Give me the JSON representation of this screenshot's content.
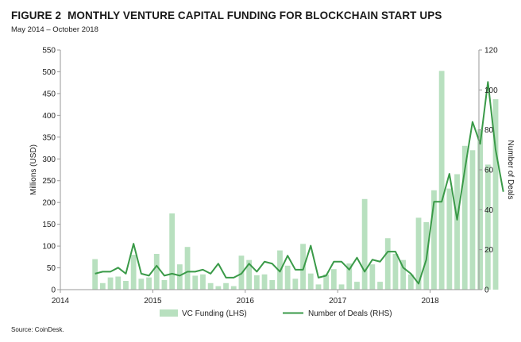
{
  "header": {
    "figure_label": "FIGURE 2",
    "title": "MONTHLY VENTURE CAPITAL FUNDING FOR BLOCKCHAIN START UPS",
    "subtitle": "May 2014 – October 2018"
  },
  "footer": {
    "source": "Source: CoinDesk."
  },
  "colors": {
    "bars": "#b8e0bf",
    "line": "#3a9a48",
    "axis": "#9a9a9a"
  },
  "chart_data": {
    "type": "bar",
    "title": "MONTHLY VENTURE CAPITAL FUNDING FOR BLOCKCHAIN START UPS",
    "subtitle": "May 2014 – October 2018",
    "ylabel": "Millions (USD)",
    "y2label": "Number of Deals",
    "ylim": [
      0,
      550
    ],
    "y2lim": [
      0,
      120
    ],
    "yticks": [
      0,
      50,
      100,
      150,
      200,
      250,
      300,
      350,
      400,
      450,
      500,
      550
    ],
    "y2ticks": [
      0,
      20,
      40,
      60,
      80,
      100,
      120
    ],
    "xtick_labels": [
      "2014",
      "2015",
      "2016",
      "2017",
      "2018"
    ],
    "legend_position": "bottom",
    "grid": false,
    "categories": [
      "May-14",
      "Jun-14",
      "Jul-14",
      "Aug-14",
      "Sep-14",
      "Oct-14",
      "Nov-14",
      "Dec-14",
      "Jan-15",
      "Feb-15",
      "Mar-15",
      "Apr-15",
      "May-15",
      "Jun-15",
      "Jul-15",
      "Aug-15",
      "Sep-15",
      "Oct-15",
      "Nov-15",
      "Dec-15",
      "Jan-16",
      "Feb-16",
      "Mar-16",
      "Apr-16",
      "May-16",
      "Jun-16",
      "Jul-16",
      "Aug-16",
      "Sep-16",
      "Oct-16",
      "Nov-16",
      "Dec-16",
      "Jan-17",
      "Feb-17",
      "Mar-17",
      "Apr-17",
      "May-17",
      "Jun-17",
      "Jul-17",
      "Aug-17",
      "Sep-17",
      "Oct-17",
      "Nov-17",
      "Dec-17",
      "Jan-18",
      "Feb-18",
      "Mar-18",
      "Apr-18",
      "May-18",
      "Jun-18",
      "Jul-18",
      "Aug-18",
      "Sep-18",
      "Oct-18"
    ],
    "series": [
      {
        "name": "VC Funding (LHS)",
        "type": "bar",
        "axis": "left",
        "values": [
          70,
          15,
          28,
          30,
          20,
          80,
          25,
          28,
          82,
          22,
          175,
          58,
          98,
          32,
          35,
          15,
          8,
          15,
          8,
          78,
          68,
          33,
          35,
          22,
          90,
          55,
          25,
          105,
          37,
          12,
          35,
          47,
          12,
          60,
          18,
          208,
          58,
          18,
          118,
          82,
          68,
          35,
          165,
          155,
          228,
          502,
          232,
          265,
          330,
          320,
          368,
          287,
          437,
          0
        ]
      },
      {
        "name": "Number of Deals (RHS)",
        "type": "line",
        "axis": "right",
        "values": [
          8,
          9,
          9,
          11,
          8,
          23,
          8,
          7,
          12,
          7,
          8,
          7,
          9,
          9,
          10,
          8,
          13,
          6,
          6,
          8,
          13,
          9,
          14,
          13,
          9,
          17,
          10,
          10,
          22,
          6,
          7,
          14,
          14,
          10,
          16,
          9,
          15,
          14,
          19,
          19,
          11,
          8,
          3,
          15,
          44,
          44,
          58,
          35,
          60,
          84,
          73,
          104,
          70,
          49
        ]
      }
    ]
  }
}
